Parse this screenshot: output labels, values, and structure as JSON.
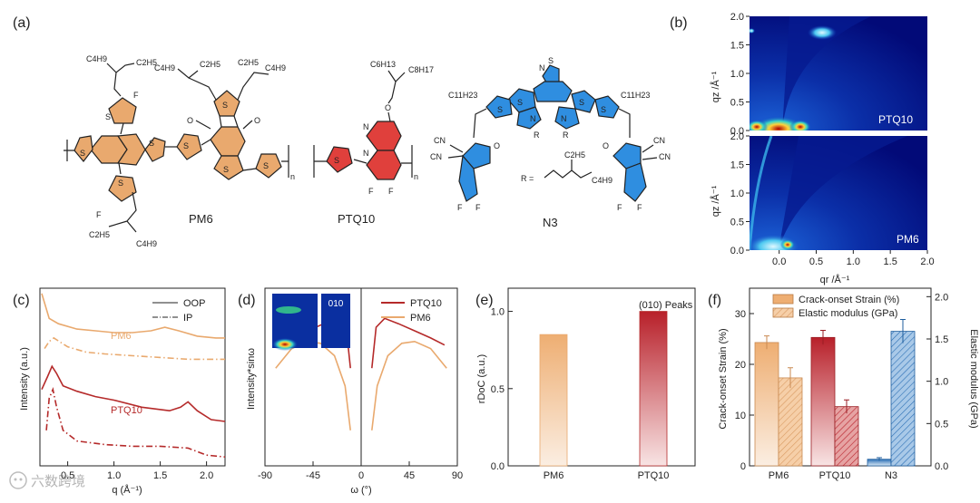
{
  "panel_a": {
    "label": "(a)",
    "molecules": {
      "pm6": {
        "name": "PM6",
        "substituents": {
          "top_left": [
            "C4H9",
            "C2H5"
          ],
          "top_right": [
            "C4H9",
            "C2H5",
            "C2H5",
            "C4H9"
          ],
          "bottom": [
            "C2H5",
            "C4H9"
          ],
          "fluorine": "F",
          "sulfur": "S",
          "oxygen": "O",
          "repeat": "n"
        }
      },
      "ptq10": {
        "name": "PTQ10",
        "substituents": {
          "chain": [
            "C6H13",
            "C8H17"
          ],
          "fluorine": "F",
          "nitrogen": "N",
          "oxygen": "O",
          "sulfur": "S",
          "repeat": "n"
        }
      },
      "n3": {
        "name": "N3",
        "substituents": {
          "alkyl": "C11H23",
          "cyano": "CN",
          "r_label": "R =",
          "r_chain": [
            "C2H5",
            "C4H9"
          ],
          "r": "R",
          "fluorine": "F",
          "oxygen": "O",
          "nitrogen": "N",
          "sulfur": "S"
        }
      }
    }
  },
  "panel_b": {
    "label": "(b)",
    "images": [
      {
        "name": "PTQ10"
      },
      {
        "name": "PM6"
      }
    ],
    "ylabel": "qz /Å⁻¹",
    "xlabel": "qr /Å⁻¹",
    "yticks": [
      "0.0",
      "0.5",
      "1.0",
      "1.5",
      "2.0"
    ],
    "xticks": [
      "0.0",
      "0.5",
      "1.0",
      "1.5",
      "2.0"
    ],
    "xlim": [
      -0.4,
      2.0
    ],
    "ylim": [
      0,
      2.0
    ]
  },
  "chart_data": [
    {
      "panel": "(c)",
      "type": "line",
      "xlabel": "q (Å⁻¹)",
      "ylabel": "Intensity (a.u.)",
      "xlim": [
        0.2,
        2.2
      ],
      "xticks": [
        "0.5",
        "1.0",
        "1.5",
        "2.0"
      ],
      "legend": {
        "entries": [
          {
            "label": "OOP",
            "style": "solid"
          },
          {
            "label": "IP",
            "style": "dash-dot"
          }
        ],
        "position": "top-right"
      },
      "series": [
        {
          "name": "PM6",
          "style": "solid",
          "color": "#e9a96e",
          "x": [
            0.22,
            0.3,
            0.4,
            0.6,
            0.8,
            1.0,
            1.2,
            1.4,
            1.55,
            1.7,
            1.9,
            2.1,
            2.2
          ],
          "y": [
            0.97,
            0.83,
            0.8,
            0.77,
            0.76,
            0.75,
            0.75,
            0.76,
            0.78,
            0.76,
            0.73,
            0.72,
            0.72
          ]
        },
        {
          "name": "PM6",
          "style": "dash-dot",
          "color": "#e9a96e",
          "x": [
            0.25,
            0.3,
            0.35,
            0.5,
            0.7,
            0.9,
            1.2,
            1.5,
            1.8,
            2.2
          ],
          "y": [
            0.66,
            0.7,
            0.72,
            0.67,
            0.64,
            0.63,
            0.62,
            0.61,
            0.6,
            0.6
          ]
        },
        {
          "name": "PTQ10",
          "style": "solid",
          "color": "#b52a2a",
          "x": [
            0.22,
            0.28,
            0.33,
            0.38,
            0.45,
            0.6,
            0.8,
            1.0,
            1.3,
            1.6,
            1.72,
            1.8,
            1.9,
            2.05,
            2.2
          ],
          "y": [
            0.43,
            0.5,
            0.56,
            0.52,
            0.45,
            0.42,
            0.39,
            0.37,
            0.33,
            0.31,
            0.33,
            0.36,
            0.31,
            0.26,
            0.25
          ]
        },
        {
          "name": "PTQ10",
          "style": "dash-dot",
          "color": "#b52a2a",
          "x": [
            0.27,
            0.3,
            0.34,
            0.38,
            0.45,
            0.6,
            0.9,
            1.2,
            1.5,
            1.8,
            2.0,
            2.2
          ],
          "y": [
            0.2,
            0.38,
            0.43,
            0.33,
            0.2,
            0.14,
            0.12,
            0.11,
            0.11,
            0.1,
            0.06,
            0.05
          ]
        }
      ]
    },
    {
      "panel": "(d)",
      "type": "line",
      "xlabel": "ω (°)",
      "ylabel": "Intensity*sinω",
      "xlim": [
        -90,
        90
      ],
      "xticks": [
        "-90",
        "-45",
        "0",
        "45",
        "90"
      ],
      "inset_label": "010",
      "legend": {
        "entries": [
          {
            "label": "PTQ10"
          },
          {
            "label": "PM6"
          }
        ],
        "position": "top-right"
      },
      "series": [
        {
          "name": "PTQ10",
          "color": "#b52a2a",
          "x": [
            -78,
            -65,
            -50,
            -35,
            -22,
            -14,
            -10,
            10,
            14,
            22,
            35,
            50,
            65,
            78
          ],
          "y": [
            0.68,
            0.72,
            0.76,
            0.8,
            0.83,
            0.78,
            0.55,
            0.55,
            0.78,
            0.83,
            0.8,
            0.76,
            0.72,
            0.68
          ]
        },
        {
          "name": "PM6",
          "color": "#e9a96e",
          "x": [
            -80,
            -65,
            -50,
            -38,
            -25,
            -15,
            -10,
            10,
            15,
            25,
            38,
            50,
            65,
            80
          ],
          "y": [
            0.55,
            0.66,
            0.7,
            0.69,
            0.62,
            0.45,
            0.2,
            0.2,
            0.45,
            0.62,
            0.69,
            0.7,
            0.66,
            0.55
          ]
        }
      ]
    },
    {
      "panel": "(e)",
      "type": "bar",
      "title": "(010) Peaks",
      "categories": [
        "PM6",
        "PTQ10"
      ],
      "values": [
        0.85,
        1.0
      ],
      "ylabel": "rDoC (a.u.)",
      "ylim": [
        0,
        1.15
      ],
      "yticks": [
        "0.0",
        "0.5",
        "1.0"
      ],
      "colors": [
        "#e9a96e",
        "#b52a2a"
      ]
    },
    {
      "panel": "(f)",
      "type": "bar",
      "categories": [
        "PM6",
        "PTQ10",
        "N3"
      ],
      "series": [
        {
          "name": "Crack-onset Strain (%)",
          "axis": "left",
          "values": [
            24.3,
            25.3,
            1.3
          ],
          "errors": [
            1.3,
            1.4,
            0.3
          ]
        },
        {
          "name": "Elastic modulus (GPa)",
          "axis": "right",
          "values": [
            1.04,
            0.7,
            1.59
          ],
          "errors": [
            0.12,
            0.08,
            0.14
          ]
        }
      ],
      "ylabel_left": "Crack-onset Strain (%)",
      "ylabel_right": "Elastic modulus (GPa)",
      "ylim_left": [
        0,
        35
      ],
      "ylim_right": [
        0,
        2.1
      ],
      "yticks_left": [
        "0",
        "10",
        "20",
        "30"
      ],
      "yticks_right": [
        "0.0",
        "0.5",
        "1.0",
        "1.5",
        "2.0"
      ],
      "legend_position": "top"
    }
  ],
  "watermark": "六数跨境"
}
